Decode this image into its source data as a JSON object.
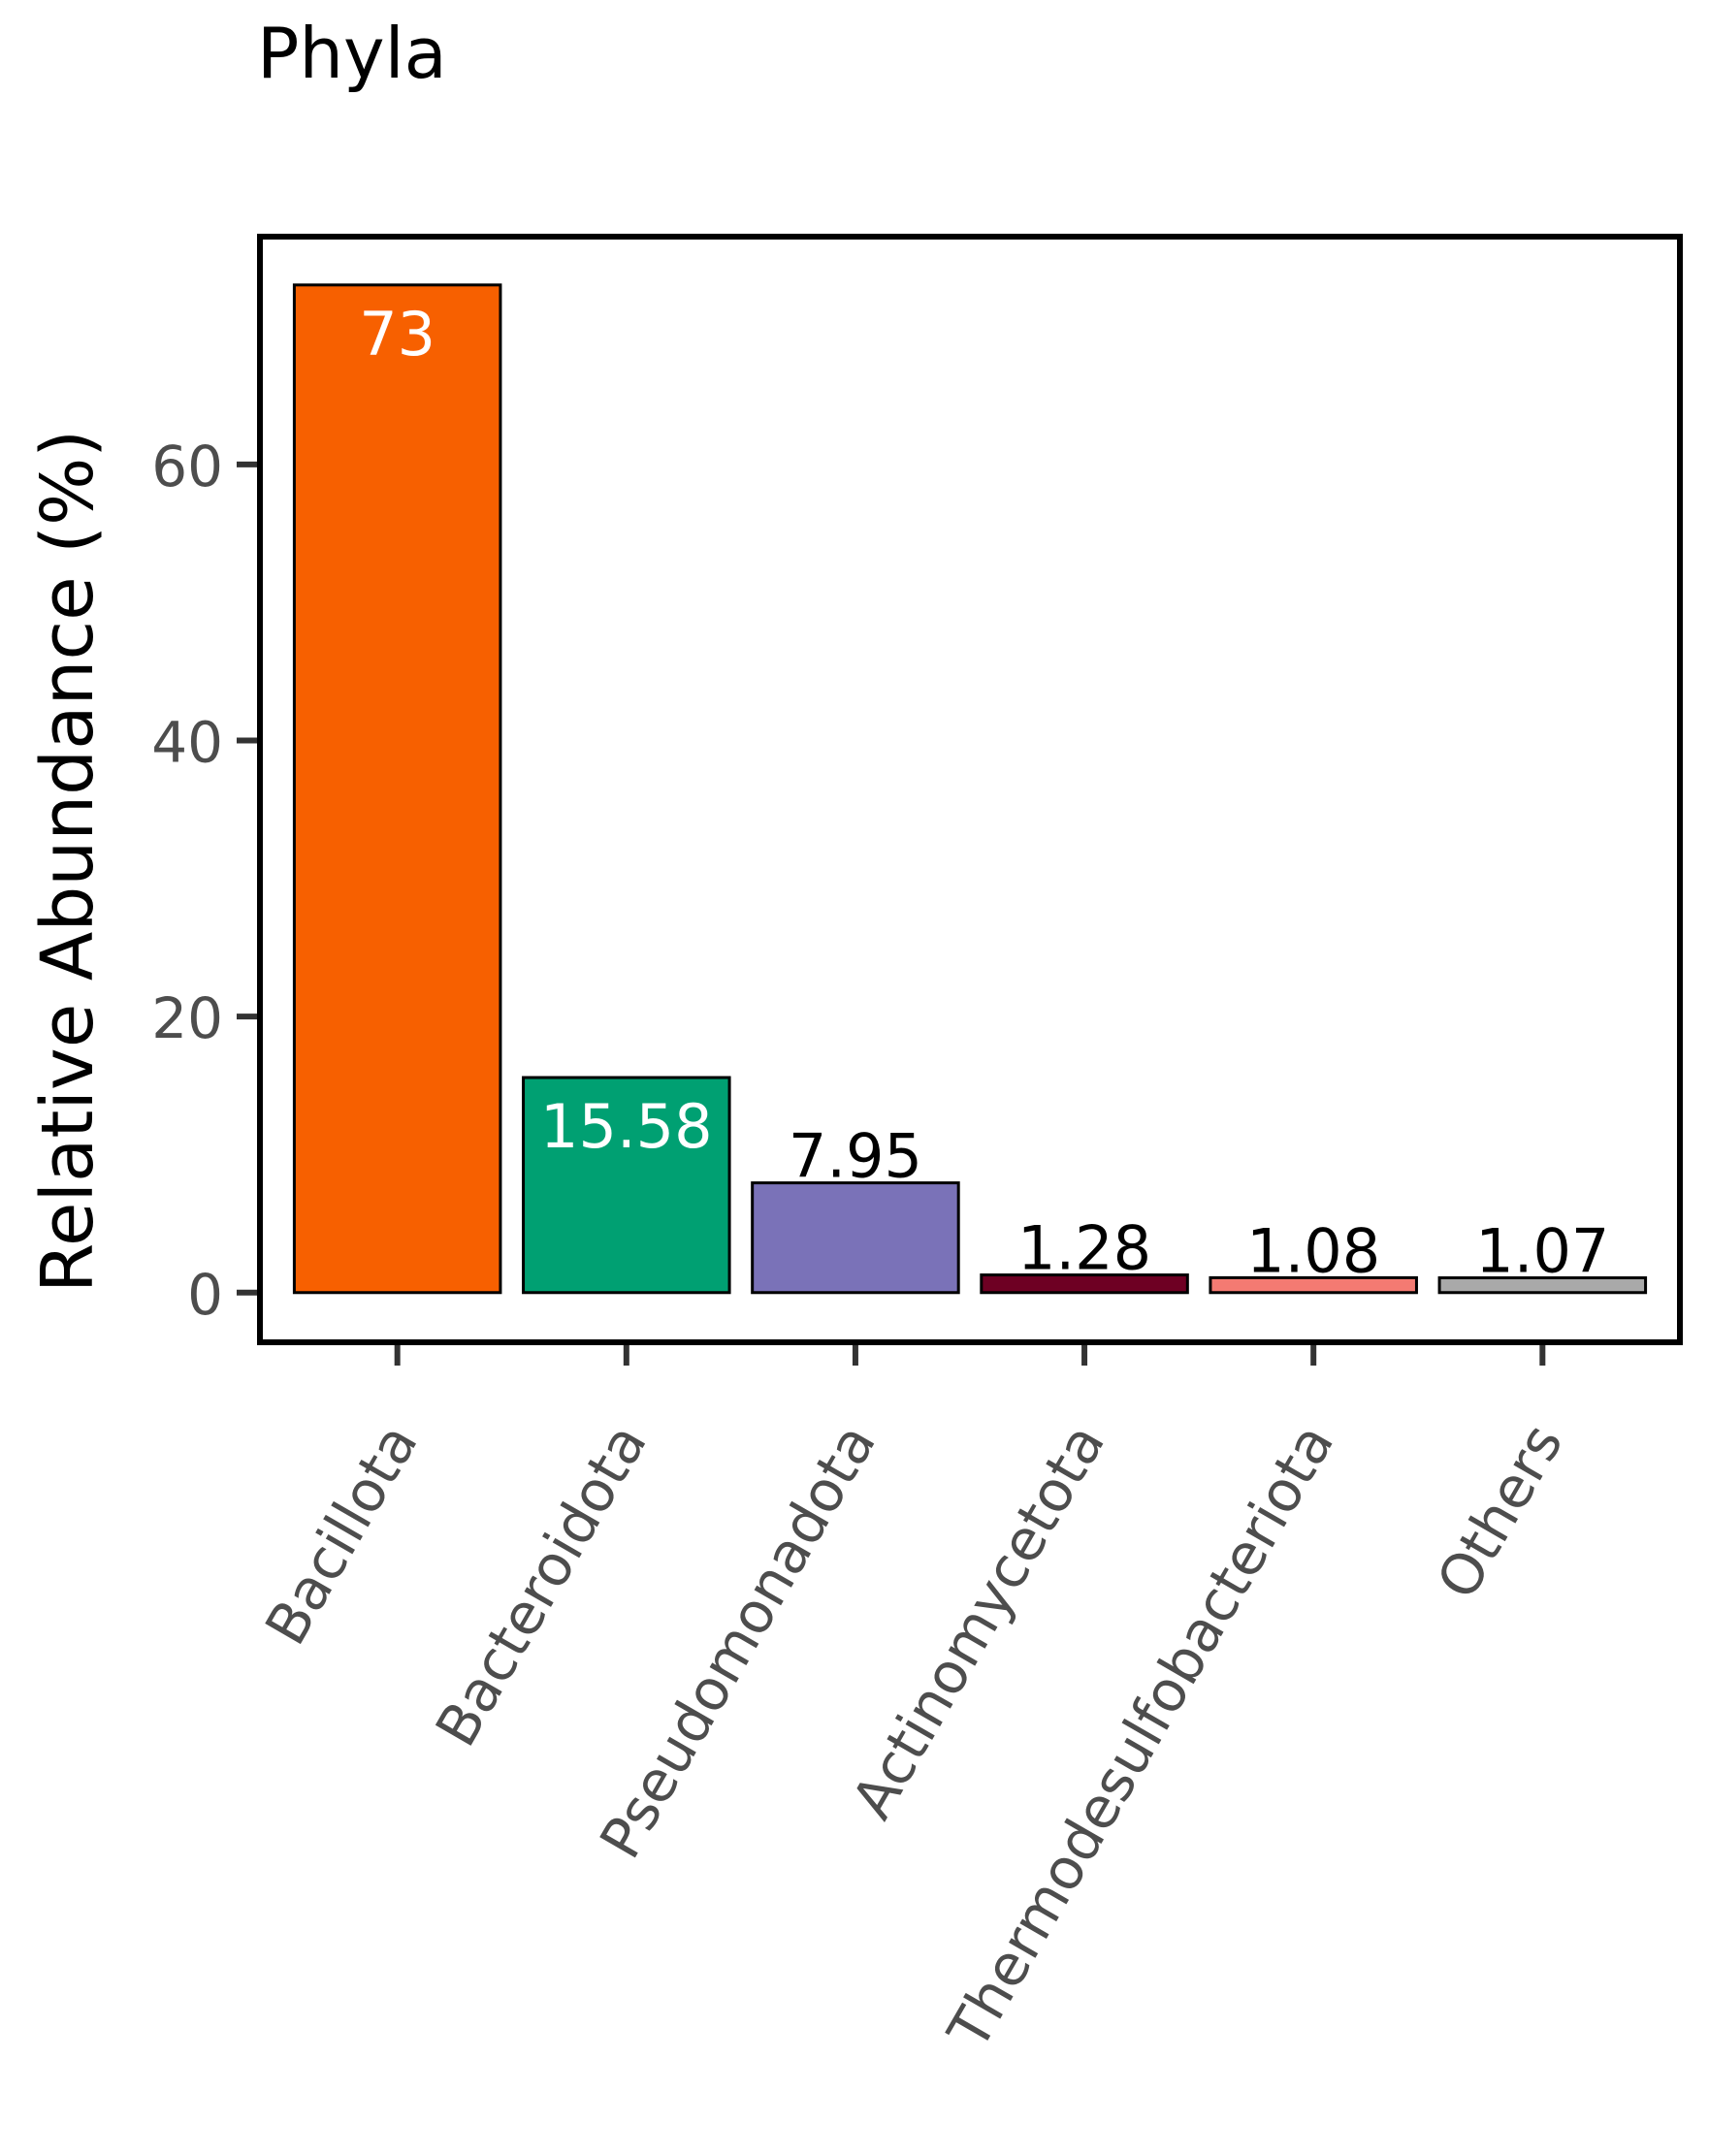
{
  "chart_data": {
    "type": "bar",
    "title": "Phyla",
    "xlabel": "",
    "ylabel": "Relative Abundance (%)",
    "categories": [
      "Bacillota",
      "Bacteroidota",
      "Pseudomonadota",
      "Actinomycetota",
      "Thermodesulfobacteriota",
      "Others"
    ],
    "values": [
      73,
      15.58,
      7.95,
      1.28,
      1.08,
      1.07
    ],
    "value_labels": [
      "73",
      "15.58",
      "7.95",
      "1.28",
      "1.08",
      "1.07"
    ],
    "colors": [
      "#F76000",
      "#00A072",
      "#7A72B8",
      "#6E0023",
      "#F47A72",
      "#A9A9A9"
    ],
    "label_colors": [
      "#ffffff",
      "#ffffff",
      "#000000",
      "#000000",
      "#000000",
      "#000000"
    ],
    "yticks": [
      0,
      20,
      40,
      60
    ],
    "ytick_labels": [
      "0",
      "20",
      "40",
      "60"
    ],
    "ylim": [
      -3.6,
      76.5
    ],
    "grid": false,
    "legend": "none"
  }
}
